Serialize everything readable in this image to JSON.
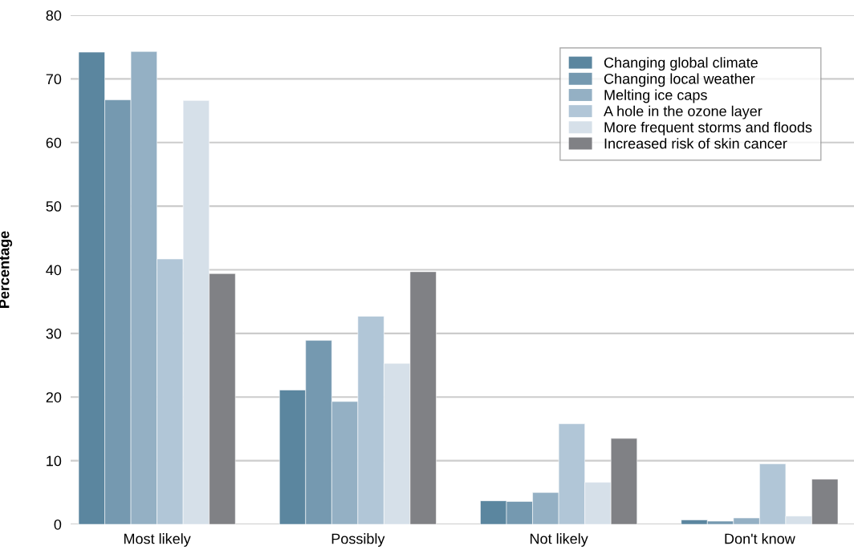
{
  "chart_data": {
    "type": "bar",
    "ylabel": "Percentage",
    "categories": [
      "Most likely",
      "Possibly",
      "Not likely",
      "Don't know"
    ],
    "series": [
      {
        "name": "Changing global climate",
        "color": "#5b869f",
        "values": [
          74.2,
          21.1,
          3.7,
          0.7
        ]
      },
      {
        "name": "Changing local weather",
        "color": "#7599b0",
        "values": [
          66.7,
          28.9,
          3.6,
          0.5
        ]
      },
      {
        "name": "Melting ice caps",
        "color": "#94b0c4",
        "values": [
          74.3,
          19.3,
          5.0,
          1.0
        ]
      },
      {
        "name": "A hole in the ozone layer",
        "color": "#b1c6d7",
        "values": [
          41.7,
          32.7,
          15.8,
          9.5
        ]
      },
      {
        "name": "More frequent storms and floods",
        "color": "#d6e0e9",
        "values": [
          66.6,
          25.3,
          6.6,
          1.3
        ]
      },
      {
        "name": "Increased risk of skin cancer",
        "color": "#808185",
        "values": [
          39.4,
          39.7,
          13.5,
          7.1
        ]
      }
    ],
    "ylim": [
      0,
      80
    ],
    "yticks": [
      0,
      10,
      20,
      30,
      40,
      50,
      60,
      70,
      80
    ],
    "grid": "y",
    "legend": "top right"
  }
}
